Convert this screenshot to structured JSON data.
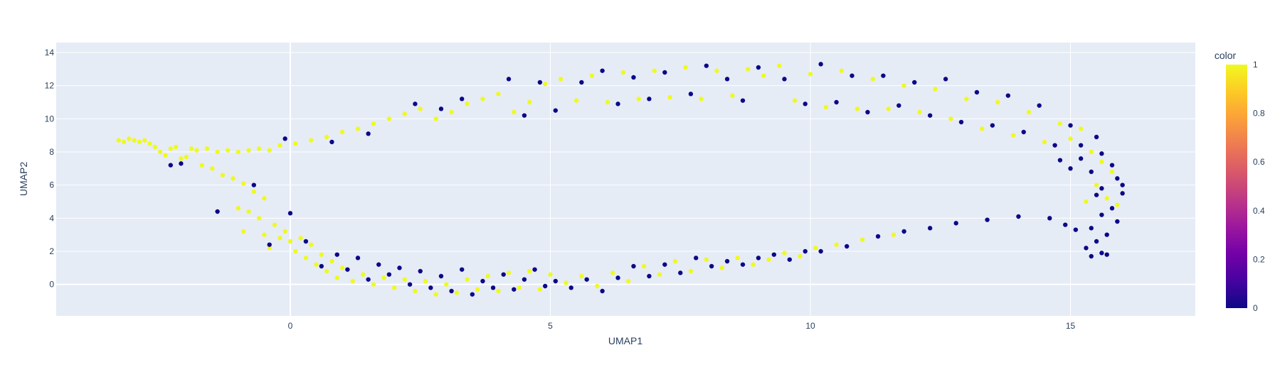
{
  "chart_data": {
    "type": "scatter",
    "xlabel": "UMAP1",
    "ylabel": "UMAP2",
    "xlim": [
      -4.5,
      17.4
    ],
    "ylim": [
      -1.9,
      14.6
    ],
    "x_ticks": [
      0,
      5,
      10,
      15
    ],
    "y_ticks": [
      0,
      2,
      4,
      6,
      8,
      10,
      12,
      14
    ],
    "grid": true,
    "colorbar": {
      "title": "color",
      "range": [
        0,
        1
      ],
      "ticks": [
        0,
        0.2,
        0.4,
        0.6,
        0.8,
        1
      ],
      "tick_labels": [
        "0",
        "0.2",
        "0.4",
        "0.6",
        "0.8",
        "1"
      ],
      "colorscale": [
        "#0d0887",
        "#46039f",
        "#7201a8",
        "#9c179e",
        "#bd3786",
        "#d8576b",
        "#ed7953",
        "#fb9f3a",
        "#fdca26",
        "#f0f921"
      ]
    },
    "colors": {
      "plot_bg": "#e5ecf6",
      "grid": "#ffffff",
      "low": "#0d0887",
      "high": "#f0f921"
    },
    "series": [
      {
        "color_value": 1,
        "points": [
          [
            -3.3,
            8.7
          ],
          [
            -3.2,
            8.6
          ],
          [
            -3.1,
            8.8
          ],
          [
            -3.0,
            8.7
          ],
          [
            -2.9,
            8.6
          ],
          [
            -2.8,
            8.7
          ],
          [
            -2.7,
            8.5
          ],
          [
            -2.6,
            8.3
          ],
          [
            -2.5,
            8.0
          ],
          [
            -2.4,
            7.8
          ],
          [
            -2.3,
            8.2
          ],
          [
            -2.2,
            8.3
          ],
          [
            -2.1,
            7.6
          ],
          [
            -2.0,
            7.7
          ],
          [
            -1.9,
            8.2
          ],
          [
            -1.8,
            8.1
          ],
          [
            -1.7,
            7.2
          ],
          [
            -1.6,
            8.2
          ],
          [
            -1.5,
            7.0
          ],
          [
            -1.4,
            8.0
          ],
          [
            -1.3,
            6.6
          ],
          [
            -1.2,
            8.1
          ],
          [
            -1.1,
            6.4
          ],
          [
            -1.0,
            8.0
          ],
          [
            -0.9,
            6.1
          ],
          [
            -0.8,
            8.1
          ],
          [
            -0.7,
            5.6
          ],
          [
            -0.6,
            8.2
          ],
          [
            -0.5,
            5.2
          ],
          [
            -0.4,
            8.1
          ],
          [
            -1.0,
            4.6
          ],
          [
            -0.8,
            4.4
          ],
          [
            -0.6,
            4.0
          ],
          [
            -0.9,
            3.2
          ],
          [
            -0.5,
            3.0
          ],
          [
            -0.3,
            3.6
          ],
          [
            -0.2,
            2.8
          ],
          [
            -0.4,
            2.2
          ],
          [
            -0.1,
            3.2
          ],
          [
            0.0,
            2.6
          ],
          [
            0.1,
            2.0
          ],
          [
            0.2,
            2.8
          ],
          [
            0.3,
            1.6
          ],
          [
            0.4,
            2.4
          ],
          [
            0.5,
            1.2
          ],
          [
            0.6,
            1.8
          ],
          [
            0.7,
            0.8
          ],
          [
            0.8,
            1.4
          ],
          [
            0.9,
            0.4
          ],
          [
            1.0,
            1.0
          ],
          [
            1.2,
            0.2
          ],
          [
            1.4,
            0.6
          ],
          [
            1.6,
            0.0
          ],
          [
            1.8,
            0.4
          ],
          [
            2.0,
            -0.2
          ],
          [
            2.2,
            0.3
          ],
          [
            2.4,
            -0.4
          ],
          [
            2.6,
            0.2
          ],
          [
            2.8,
            -0.6
          ],
          [
            3.0,
            0.0
          ],
          [
            3.2,
            -0.5
          ],
          [
            3.4,
            0.3
          ],
          [
            3.6,
            -0.3
          ],
          [
            3.8,
            0.5
          ],
          [
            4.0,
            -0.4
          ],
          [
            4.2,
            0.7
          ],
          [
            4.4,
            -0.2
          ],
          [
            4.6,
            0.8
          ],
          [
            4.8,
            -0.3
          ],
          [
            5.0,
            0.6
          ],
          [
            5.3,
            0.1
          ],
          [
            5.6,
            0.5
          ],
          [
            5.9,
            -0.1
          ],
          [
            6.2,
            0.7
          ],
          [
            6.5,
            0.2
          ],
          [
            6.8,
            1.1
          ],
          [
            7.1,
            0.6
          ],
          [
            7.4,
            1.4
          ],
          [
            7.7,
            0.8
          ],
          [
            8.0,
            1.5
          ],
          [
            8.3,
            1.0
          ],
          [
            8.6,
            1.6
          ],
          [
            8.9,
            1.2
          ],
          [
            9.2,
            1.5
          ],
          [
            9.5,
            1.9
          ],
          [
            9.8,
            1.7
          ],
          [
            10.1,
            2.2
          ],
          [
            10.5,
            2.4
          ],
          [
            11.0,
            2.7
          ],
          [
            11.6,
            3.0
          ],
          [
            -0.2,
            8.4
          ],
          [
            0.1,
            8.5
          ],
          [
            0.4,
            8.7
          ],
          [
            0.7,
            8.9
          ],
          [
            1.0,
            9.2
          ],
          [
            1.3,
            9.4
          ],
          [
            1.6,
            9.7
          ],
          [
            1.9,
            10.0
          ],
          [
            2.2,
            10.3
          ],
          [
            2.5,
            10.6
          ],
          [
            2.8,
            10.0
          ],
          [
            3.1,
            10.4
          ],
          [
            3.4,
            10.9
          ],
          [
            3.7,
            11.2
          ],
          [
            4.0,
            11.5
          ],
          [
            4.3,
            10.4
          ],
          [
            4.6,
            11.0
          ],
          [
            4.9,
            12.1
          ],
          [
            5.2,
            12.4
          ],
          [
            5.5,
            11.1
          ],
          [
            5.8,
            12.6
          ],
          [
            6.1,
            11.0
          ],
          [
            6.4,
            12.8
          ],
          [
            6.7,
            11.2
          ],
          [
            7.0,
            12.9
          ],
          [
            7.3,
            11.3
          ],
          [
            7.6,
            13.1
          ],
          [
            7.9,
            11.2
          ],
          [
            8.2,
            12.9
          ],
          [
            8.5,
            11.4
          ],
          [
            8.8,
            13.0
          ],
          [
            9.1,
            12.6
          ],
          [
            9.4,
            13.2
          ],
          [
            9.7,
            11.1
          ],
          [
            10.0,
            12.7
          ],
          [
            10.3,
            10.7
          ],
          [
            10.6,
            12.9
          ],
          [
            10.9,
            10.6
          ],
          [
            11.2,
            12.4
          ],
          [
            11.5,
            10.6
          ],
          [
            11.8,
            12.0
          ],
          [
            12.1,
            10.4
          ],
          [
            12.4,
            11.8
          ],
          [
            12.7,
            10.0
          ],
          [
            13.0,
            11.2
          ],
          [
            13.3,
            9.4
          ],
          [
            13.6,
            11.0
          ],
          [
            13.9,
            9.0
          ],
          [
            14.2,
            10.4
          ],
          [
            14.5,
            8.6
          ],
          [
            14.8,
            9.7
          ],
          [
            15.0,
            8.8
          ],
          [
            15.2,
            9.4
          ],
          [
            15.4,
            8.0
          ],
          [
            15.6,
            7.4
          ],
          [
            15.8,
            6.8
          ],
          [
            15.5,
            6.0
          ],
          [
            15.7,
            5.2
          ],
          [
            15.3,
            5.0
          ],
          [
            15.9,
            4.8
          ]
        ]
      },
      {
        "color_value": 0,
        "points": [
          [
            -2.3,
            7.2
          ],
          [
            -2.1,
            7.3
          ],
          [
            -1.4,
            4.4
          ],
          [
            -0.7,
            6.0
          ],
          [
            -0.4,
            2.4
          ],
          [
            0.0,
            4.3
          ],
          [
            0.3,
            2.6
          ],
          [
            0.6,
            1.1
          ],
          [
            0.9,
            1.8
          ],
          [
            1.1,
            0.9
          ],
          [
            1.3,
            1.6
          ],
          [
            1.5,
            0.3
          ],
          [
            1.7,
            1.2
          ],
          [
            1.9,
            0.6
          ],
          [
            2.1,
            1.0
          ],
          [
            2.3,
            0.0
          ],
          [
            2.5,
            0.8
          ],
          [
            2.7,
            -0.2
          ],
          [
            2.9,
            0.5
          ],
          [
            3.1,
            -0.4
          ],
          [
            3.3,
            0.9
          ],
          [
            3.5,
            -0.6
          ],
          [
            3.7,
            0.2
          ],
          [
            3.9,
            -0.2
          ],
          [
            4.1,
            0.6
          ],
          [
            4.3,
            -0.3
          ],
          [
            4.5,
            0.3
          ],
          [
            4.7,
            0.9
          ],
          [
            4.9,
            -0.1
          ],
          [
            5.1,
            0.2
          ],
          [
            5.4,
            -0.2
          ],
          [
            5.7,
            0.3
          ],
          [
            6.0,
            -0.4
          ],
          [
            6.3,
            0.4
          ],
          [
            6.6,
            1.1
          ],
          [
            6.9,
            0.5
          ],
          [
            7.2,
            1.2
          ],
          [
            7.5,
            0.7
          ],
          [
            7.8,
            1.6
          ],
          [
            8.1,
            1.1
          ],
          [
            8.4,
            1.4
          ],
          [
            8.7,
            1.2
          ],
          [
            9.0,
            1.6
          ],
          [
            9.3,
            1.8
          ],
          [
            9.6,
            1.5
          ],
          [
            9.9,
            2.0
          ],
          [
            10.2,
            2.0
          ],
          [
            10.7,
            2.3
          ],
          [
            11.3,
            2.9
          ],
          [
            11.8,
            3.2
          ],
          [
            12.3,
            3.4
          ],
          [
            12.8,
            3.7
          ],
          [
            13.4,
            3.9
          ],
          [
            14.0,
            4.1
          ],
          [
            14.6,
            4.0
          ],
          [
            -0.1,
            8.8
          ],
          [
            0.8,
            8.6
          ],
          [
            1.5,
            9.1
          ],
          [
            2.4,
            10.9
          ],
          [
            2.9,
            10.6
          ],
          [
            3.3,
            11.2
          ],
          [
            4.2,
            12.4
          ],
          [
            4.5,
            10.2
          ],
          [
            4.8,
            12.2
          ],
          [
            5.1,
            10.5
          ],
          [
            5.6,
            12.2
          ],
          [
            6.0,
            12.9
          ],
          [
            6.3,
            10.9
          ],
          [
            6.6,
            12.5
          ],
          [
            6.9,
            11.2
          ],
          [
            7.2,
            12.8
          ],
          [
            7.7,
            11.5
          ],
          [
            8.0,
            13.2
          ],
          [
            8.4,
            12.4
          ],
          [
            8.7,
            11.1
          ],
          [
            9.0,
            13.1
          ],
          [
            9.5,
            12.4
          ],
          [
            9.9,
            10.9
          ],
          [
            10.2,
            13.3
          ],
          [
            10.5,
            11.0
          ],
          [
            10.8,
            12.6
          ],
          [
            11.1,
            10.4
          ],
          [
            11.4,
            12.6
          ],
          [
            11.7,
            10.8
          ],
          [
            12.0,
            12.2
          ],
          [
            12.3,
            10.2
          ],
          [
            12.6,
            12.4
          ],
          [
            12.9,
            9.8
          ],
          [
            13.2,
            11.6
          ],
          [
            13.5,
            9.6
          ],
          [
            13.8,
            11.4
          ],
          [
            14.1,
            9.2
          ],
          [
            14.4,
            10.8
          ],
          [
            14.7,
            8.4
          ],
          [
            15.0,
            9.6
          ],
          [
            15.2,
            8.4
          ],
          [
            15.5,
            8.9
          ],
          [
            15.6,
            7.9
          ],
          [
            15.8,
            7.2
          ],
          [
            15.4,
            6.8
          ],
          [
            15.9,
            6.4
          ],
          [
            15.6,
            5.8
          ],
          [
            16.0,
            5.5
          ],
          [
            15.5,
            5.4
          ],
          [
            15.8,
            4.6
          ],
          [
            15.6,
            4.2
          ],
          [
            15.9,
            3.8
          ],
          [
            15.4,
            3.4
          ],
          [
            15.7,
            3.0
          ],
          [
            15.5,
            2.6
          ],
          [
            15.3,
            2.2
          ],
          [
            15.6,
            1.9
          ],
          [
            15.4,
            1.7
          ],
          [
            15.7,
            1.8
          ],
          [
            15.1,
            3.3
          ],
          [
            14.9,
            3.6
          ],
          [
            15.2,
            7.6
          ],
          [
            15.0,
            7.0
          ],
          [
            14.8,
            7.5
          ],
          [
            16.0,
            6.0
          ]
        ]
      }
    ]
  }
}
